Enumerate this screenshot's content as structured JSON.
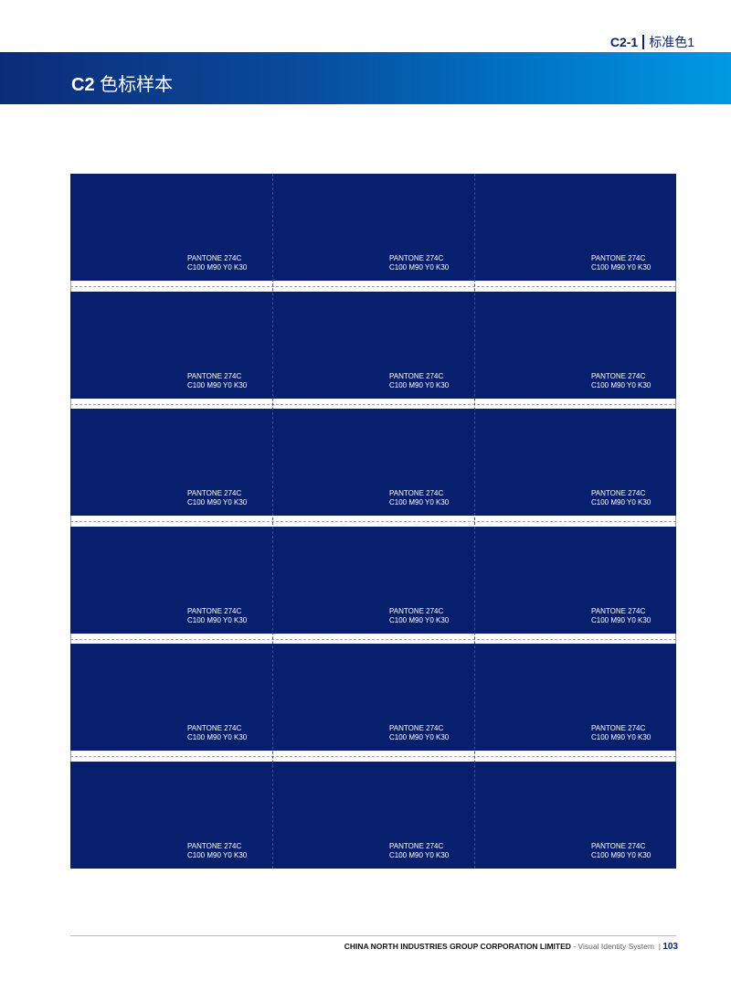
{
  "header": {
    "section_code": "C2-1",
    "section_name": "标准色1",
    "title_code": "C2",
    "title_name": "色标样本"
  },
  "colors": {
    "swatch": "#071f6d",
    "band_start": "#0c2c78",
    "band_end": "#009ae2"
  },
  "swatch": {
    "pantone": "PANTONE 274C",
    "cmyk": "C100 M90 Y0 K30"
  },
  "grid": {
    "rows": 6,
    "columns": 3
  },
  "footer": {
    "company": "CHINA NORTH INDUSTRIES GROUP CORPORATION LIMITED",
    "system": "- Visual Identity System",
    "separator": "|",
    "page": "103"
  }
}
